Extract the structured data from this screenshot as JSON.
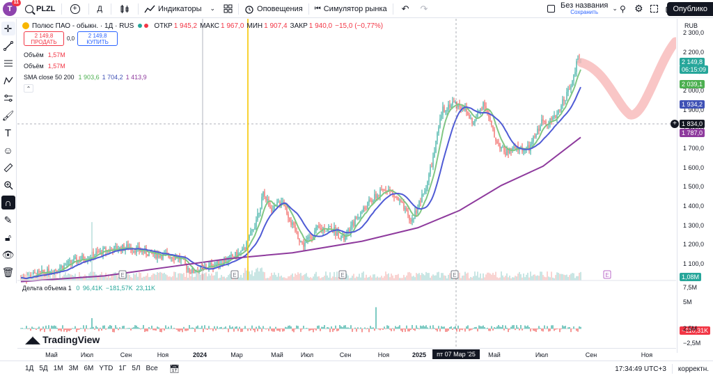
{
  "header": {
    "avatar_letter": "T",
    "notifications": "11",
    "symbol": "PLZL",
    "interval": "Д",
    "indicators_label": "Индикаторы",
    "alerts_label": "Оповещения",
    "replay_label": "Симулятор рынка",
    "layout_name": "Без названия",
    "layout_status": "Сохранить",
    "publish_label": "Опублико"
  },
  "legend": {
    "title": "Полюс ПАО - обыкн. · 1Д · RUS",
    "open_k": "ОТКР",
    "open_v": "1 945,2",
    "high_k": "МАКС",
    "high_v": "1 967,0",
    "low_k": "МИН",
    "low_v": "1 907,4",
    "close_k": "ЗАКР",
    "close_v": "1 940,0",
    "change": "−15,0 (−0,77%)",
    "sell_price": "2 149,8",
    "sell_label": "ПРОДАТЬ",
    "spread": "0,0",
    "buy_price": "2 149,8",
    "buy_label": "КУПИТЬ",
    "vol1_label": "Объём",
    "vol1_value": "1,57M",
    "vol2_label": "Объём",
    "vol2_value": "1,57M",
    "sma_label": "SMA close 50 200",
    "sma1": "1 903,6",
    "sma2": "1 704,2",
    "sma3": "1 413,9"
  },
  "price_scale": {
    "currency": "RUB",
    "ticks": [
      "2 300,0",
      "2 200,0",
      "2 100,0",
      "2 000,0",
      "1 900,0",
      "1 800,0",
      "1 700,0",
      "1 600,0",
      "1 500,0",
      "1 400,0",
      "1 300,0",
      "1 200,0",
      "1 100,0"
    ],
    "last_price": "2 149,8",
    "countdown": "06:15:09",
    "green_ma": "2 039,1",
    "blue_ma": "1 934,2",
    "crosshair": "1 834,0",
    "purple_ma": "1 787,0",
    "volume_label": "1,08M",
    "lower_ticks": [
      "7,5M",
      "5M",
      "2,5M",
      "−2,5M"
    ],
    "delta_value": "−110,31K"
  },
  "volume_delta": {
    "label": "Дельта объема",
    "param": "1",
    "v0": "0",
    "v1": "96,41K",
    "v2": "−181,57K",
    "v3": "23,11K"
  },
  "time_axis": {
    "labels": [
      "Май",
      "Июл",
      "Сен",
      "Ноя",
      "2024",
      "Мар",
      "Май",
      "Июл",
      "Сен",
      "Ноя",
      "2025",
      "Май",
      "Июл",
      "Сен",
      "Ноя"
    ],
    "cursor_date": "пт 07 Мар '25"
  },
  "bottom": {
    "ranges": [
      "1Д",
      "5Д",
      "1М",
      "3М",
      "6М",
      "YTD",
      "1Г",
      "5Л",
      "Все"
    ],
    "clock": "17:34:49 UTC+3",
    "adjust": "корректн."
  },
  "brand": "TradingView",
  "colors": {
    "up": "#26a69a",
    "down": "#ef5350",
    "sma_short": "#81c784",
    "sma_mid": "#4f5bd5",
    "sma_long": "#8e3a9d",
    "accent": "#2962ff",
    "drawing": "#f7b8b8",
    "vline": "#f7c600"
  }
}
